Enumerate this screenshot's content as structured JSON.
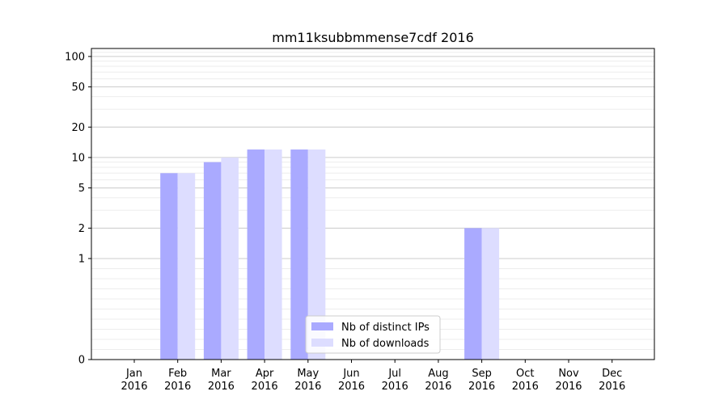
{
  "chart_data": {
    "type": "bar",
    "title": "mm11ksubbmmense7cdf 2016",
    "xlabel": "",
    "ylabel": "",
    "yscale": "symlog",
    "ylim": [
      0,
      120
    ],
    "yticks": [
      0,
      1,
      2,
      5,
      10,
      20,
      50,
      100
    ],
    "ytick_labels": [
      "0",
      "1",
      "2",
      "5",
      "10",
      "20",
      "50",
      "100"
    ],
    "categories": [
      {
        "month": "Jan",
        "year": "2016"
      },
      {
        "month": "Feb",
        "year": "2016"
      },
      {
        "month": "Mar",
        "year": "2016"
      },
      {
        "month": "Apr",
        "year": "2016"
      },
      {
        "month": "May",
        "year": "2016"
      },
      {
        "month": "Jun",
        "year": "2016"
      },
      {
        "month": "Jul",
        "year": "2016"
      },
      {
        "month": "Aug",
        "year": "2016"
      },
      {
        "month": "Sep",
        "year": "2016"
      },
      {
        "month": "Oct",
        "year": "2016"
      },
      {
        "month": "Nov",
        "year": "2016"
      },
      {
        "month": "Dec",
        "year": "2016"
      }
    ],
    "series": [
      {
        "name": "Nb of distinct IPs",
        "color": "#aaaaff",
        "values": [
          0,
          7,
          9,
          12,
          12,
          0,
          0,
          0,
          2,
          0,
          0,
          0
        ]
      },
      {
        "name": "Nb of downloads",
        "color": "#ddddff",
        "values": [
          0,
          7,
          10,
          12,
          12,
          0,
          0,
          0,
          2,
          0,
          0,
          0
        ]
      }
    ],
    "grid": true,
    "legend_position": "bottom-center"
  }
}
